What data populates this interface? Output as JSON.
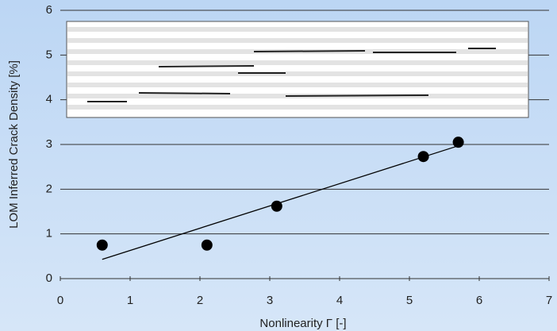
{
  "chart_data": {
    "type": "scatter",
    "x_label": "Nonlinearity Γ [-]",
    "y_label": "LOM Inferred Crack Density [%]",
    "series": [
      {
        "x": [
          0.6,
          2.1,
          3.1,
          5.2,
          5.7
        ],
        "values": [
          0.75,
          0.75,
          1.62,
          2.73,
          3.05
        ],
        "color": "#000000"
      }
    ],
    "trendline": {
      "x": [
        0.6,
        5.7
      ],
      "values": [
        0.43,
        2.97
      ],
      "color": "#000000"
    },
    "xlim": [
      0,
      7
    ],
    "xticks": [
      0,
      1,
      2,
      3,
      4,
      5,
      6,
      7
    ],
    "ylim": [
      0,
      6
    ],
    "yticks": [
      0,
      1,
      2,
      3,
      4,
      5,
      6
    ],
    "grid": true
  }
}
